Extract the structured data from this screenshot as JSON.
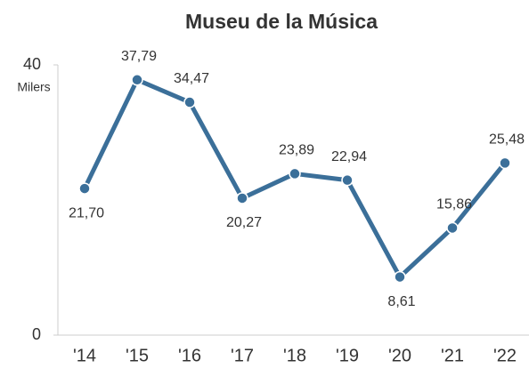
{
  "chart_data": {
    "type": "line",
    "title": "Museu de la Música",
    "y_label": "Milers",
    "categories": [
      "'14",
      "'15",
      "'16",
      "'17",
      "'18",
      "'19",
      "'20",
      "'21",
      "'22"
    ],
    "values": [
      21.7,
      37.79,
      34.47,
      20.27,
      23.89,
      22.94,
      8.61,
      15.86,
      25.48
    ],
    "value_labels": [
      "21,70",
      "37,79",
      "34,47",
      "20,27",
      "23,89",
      "22,94",
      "8,61",
      "15,86",
      "25,48"
    ],
    "color": "#3b6f99",
    "ylim": [
      0,
      40
    ],
    "yticks": [
      0,
      40
    ]
  }
}
